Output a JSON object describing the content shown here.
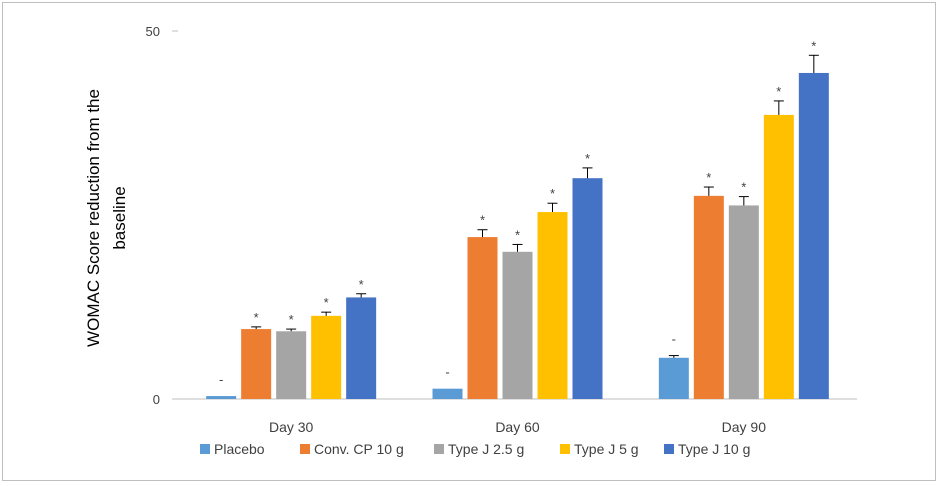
{
  "chart_data": {
    "type": "bar",
    "title": "",
    "ylabel": "WOMAC Score reduction from the baseline",
    "xlabel": "",
    "ylim": [
      0,
      50
    ],
    "yticks": [
      "0",
      "50"
    ],
    "grid": false,
    "legend_position": "bottom",
    "categories": [
      "Day 30",
      "Day 60",
      "Day 90"
    ],
    "series": [
      {
        "name": "Placebo",
        "color": "#5b9bd5",
        "values": [
          0.4,
          1.4,
          5.6
        ],
        "errors": [
          0,
          0,
          0.3
        ],
        "marks": [
          "-",
          "-",
          "-"
        ]
      },
      {
        "name": "Conv. CP 10 g",
        "color": "#ed7d31",
        "values": [
          9.5,
          22.0,
          27.6
        ],
        "errors": [
          0.3,
          1.0,
          1.2
        ],
        "marks": [
          "*",
          "*",
          "*"
        ]
      },
      {
        "name": "Type J 2.5 g",
        "color": "#a5a5a5",
        "values": [
          9.2,
          20.0,
          26.3
        ],
        "errors": [
          0.3,
          1.0,
          1.2
        ],
        "marks": [
          "*",
          "*",
          "*"
        ]
      },
      {
        "name": "Type J 5 g",
        "color": "#ffc000",
        "values": [
          11.3,
          25.4,
          38.6
        ],
        "errors": [
          0.5,
          1.2,
          1.9
        ],
        "marks": [
          "*",
          "*",
          "*"
        ]
      },
      {
        "name": "Type J 10 g",
        "color": "#4472c4",
        "values": [
          13.8,
          30.0,
          44.3
        ],
        "errors": [
          0.5,
          1.4,
          2.4
        ],
        "marks": [
          "*",
          "*",
          "*"
        ]
      }
    ]
  }
}
